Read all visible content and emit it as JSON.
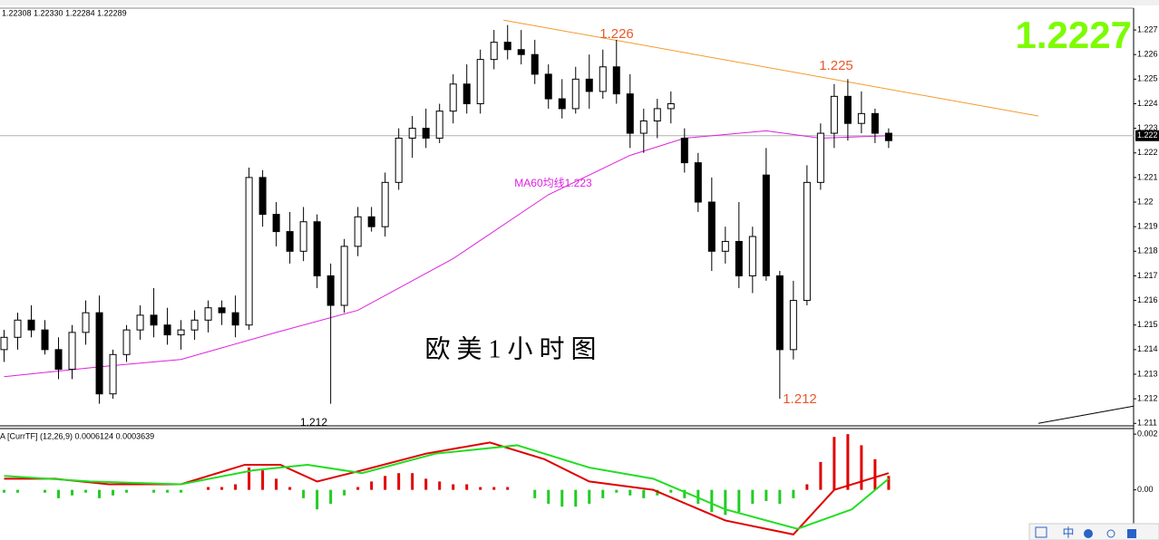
{
  "chart_data": {
    "type": "candlestick",
    "header": "1.22308 1.22330 1.22284 1.22289",
    "title": "欧 美 1 小 时 图",
    "last_price": 1.2227,
    "price_box": "1.222",
    "xlim": [
      -0.3,
      83
    ],
    "ylim": [
      1.2109,
      1.22785
    ],
    "yticks": [
      1.227,
      1.226,
      1.225,
      1.224,
      1.223,
      1.222,
      1.221,
      1.22,
      1.219,
      1.218,
      1.217,
      1.216,
      1.215,
      1.214,
      1.213,
      1.212,
      1.211
    ],
    "up_color": "#ffffff",
    "down_color": "#000000",
    "open": [
      1.214,
      1.2145,
      1.2152,
      1.2148,
      1.214,
      1.2132,
      1.2147,
      1.2155,
      1.2122,
      1.2138,
      1.2148,
      1.2154,
      1.215,
      1.2146,
      1.2148,
      1.2152,
      1.2157,
      1.2155,
      1.215,
      1.221,
      1.2195,
      1.2188,
      1.218,
      1.2192,
      1.217,
      1.2158,
      1.2182,
      1.2194,
      1.219,
      1.2208,
      1.2226,
      1.223,
      1.2226,
      1.2237,
      1.2248,
      1.224,
      1.2258,
      1.2265,
      1.2262,
      1.226,
      1.2252,
      1.2242,
      1.2238,
      1.225,
      1.2245,
      1.2255,
      1.2244,
      1.2228,
      1.2233,
      1.2238,
      1.2226,
      1.2216,
      1.22,
      1.218,
      1.2184,
      1.217,
      1.2211,
      1.217,
      1.214,
      1.216,
      1.2208,
      1.2228,
      1.2243,
      1.2232,
      1.2236,
      1.2228
    ],
    "high": [
      1.2148,
      1.2155,
      1.2158,
      1.2152,
      1.2145,
      1.215,
      1.216,
      1.2162,
      1.214,
      1.215,
      1.2158,
      1.2165,
      1.2157,
      1.2152,
      1.2156,
      1.216,
      1.216,
      1.2162,
      1.2214,
      1.2213,
      1.22,
      1.2196,
      1.2198,
      1.2195,
      1.2175,
      1.2185,
      1.2198,
      1.2198,
      1.2212,
      1.223,
      1.2235,
      1.2238,
      1.224,
      1.2252,
      1.2256,
      1.2262,
      1.227,
      1.2272,
      1.227,
      1.2266,
      1.2256,
      1.225,
      1.2255,
      1.226,
      1.2262,
      1.2266,
      1.2252,
      1.2238,
      1.2242,
      1.2245,
      1.223,
      1.222,
      1.221,
      1.219,
      1.22,
      1.219,
      1.2222,
      1.2172,
      1.2168,
      1.2215,
      1.2232,
      1.2248,
      1.225,
      1.2245,
      1.2238,
      1.223
    ],
    "low": [
      1.2135,
      1.214,
      1.2145,
      1.2138,
      1.2128,
      1.2128,
      1.2142,
      1.2118,
      1.212,
      1.2135,
      1.2144,
      1.2145,
      1.2142,
      1.214,
      1.2144,
      1.2147,
      1.215,
      1.2145,
      1.2148,
      1.219,
      1.2182,
      1.2175,
      1.2176,
      1.2165,
      1.2118,
      1.2155,
      1.2178,
      1.2188,
      1.2186,
      1.2205,
      1.2218,
      1.2222,
      1.2224,
      1.2232,
      1.2236,
      1.2236,
      1.2254,
      1.2258,
      1.2256,
      1.2248,
      1.2238,
      1.2234,
      1.2236,
      1.2238,
      1.2242,
      1.224,
      1.2222,
      1.222,
      1.2226,
      1.2232,
      1.2212,
      1.2196,
      1.2172,
      1.2175,
      1.2165,
      1.2163,
      1.2168,
      1.212,
      1.2136,
      1.2158,
      1.2205,
      1.2222,
      1.2225,
      1.2228,
      1.2224,
      1.2222
    ],
    "close": [
      1.2145,
      1.2152,
      1.2148,
      1.214,
      1.2132,
      1.2147,
      1.2155,
      1.2122,
      1.2138,
      1.2148,
      1.2154,
      1.215,
      1.2146,
      1.2148,
      1.2152,
      1.2157,
      1.2155,
      1.215,
      1.221,
      1.2195,
      1.2188,
      1.218,
      1.2192,
      1.217,
      1.2158,
      1.2182,
      1.2194,
      1.219,
      1.2208,
      1.2226,
      1.223,
      1.2226,
      1.2237,
      1.2248,
      1.224,
      1.2258,
      1.2265,
      1.2262,
      1.226,
      1.2252,
      1.2242,
      1.2238,
      1.225,
      1.2245,
      1.2255,
      1.2244,
      1.2228,
      1.2233,
      1.2238,
      1.224,
      1.2216,
      1.22,
      1.218,
      1.2184,
      1.217,
      1.2186,
      1.217,
      1.214,
      1.216,
      1.2208,
      1.2228,
      1.2243,
      1.2232,
      1.2236,
      1.2228,
      1.2225
    ],
    "ma60": {
      "name": "MA60均线1.223",
      "color": "#dd22dd",
      "x": [
        0,
        7,
        13,
        20,
        26,
        33,
        40,
        46,
        50,
        56,
        60,
        65
      ],
      "values": [
        1.2129,
        1.2133,
        1.2136,
        1.2147,
        1.2156,
        1.2177,
        1.2203,
        1.2219,
        1.2226,
        1.2229,
        1.2226,
        1.2227
      ]
    },
    "trendlines": [
      {
        "color": "#f39a2a",
        "x": [
          36.7,
          76
        ],
        "values": [
          1.2274,
          1.2235
        ]
      },
      {
        "color": "#000000",
        "x": [
          76,
          83
        ],
        "values": [
          1.211,
          1.2117
        ]
      }
    ],
    "annotations": [
      "1.226",
      "1.225",
      "1.212",
      "1.212"
    ],
    "annotation_color": "#e8582a",
    "macd": {
      "label": "A [CurrTF] (12,26,9) 0.0006124 0.0003639",
      "ylim": [
        -0.0018,
        0.0022
      ],
      "yticks": [
        {
          "value": 0.002,
          "label": "0.002"
        },
        {
          "value": 0,
          "label": "0.00"
        }
      ],
      "up_color": "#e00000",
      "down_color": "#22cc22",
      "histogram": [
        -0.0001,
        -0.0001,
        0,
        -0.0001,
        -0.0003,
        -0.0002,
        -0.0001,
        -0.0003,
        -0.0002,
        -0.0001,
        0,
        -0.0001,
        -0.0001,
        -0.0001,
        0,
        0.0001,
        0.0001,
        0.0002,
        0.0008,
        0.0007,
        0.0004,
        0.0001,
        -0.0003,
        -0.0007,
        -0.0005,
        -0.0002,
        0.0001,
        0.0003,
        0.0005,
        0.0006,
        0.0006,
        0.0004,
        0.0003,
        0.0002,
        0.0002,
        0.0001,
        0.0001,
        0.0001,
        0,
        -0.0003,
        -0.0005,
        -0.0006,
        -0.0006,
        -0.0005,
        -0.0003,
        -0.0001,
        -0.0002,
        -0.0003,
        -0.0002,
        -0.0001,
        -0.0003,
        -0.0005,
        -0.0008,
        -0.0009,
        -0.0008,
        -0.0005,
        -0.0004,
        -0.0005,
        -0.0003,
        0.0002,
        0.001,
        0.0019,
        0.002,
        0.0016,
        0.0011,
        0.0005
      ],
      "series": [
        {
          "color": "#e00000",
          "x": [
            0,
            3.7,
            7.7,
            13,
            17.7,
            20.3,
            23,
            26.3,
            31,
            35.7,
            39.7,
            43,
            47.7,
            53,
            58,
            61,
            65
          ],
          "values": [
            0.0004,
            0.0004,
            0.0002,
            0.0002,
            0.0009,
            0.0009,
            0.0003,
            0.0007,
            0.0013,
            0.0017,
            0.0011,
            0.0003,
            0,
            -0.0011,
            -0.0016,
            0,
            0.0006
          ]
        },
        {
          "color": "#22dd22",
          "x": [
            0,
            6.3,
            13,
            18.3,
            22.3,
            26.3,
            31.7,
            37.7,
            43,
            47.7,
            53,
            58.3,
            62.3,
            65
          ],
          "values": [
            0.0005,
            0.0003,
            0.0002,
            0.0007,
            0.0009,
            0.0006,
            0.0013,
            0.0016,
            0.0008,
            0.0004,
            -0.0007,
            -0.0014,
            -0.0007,
            0.0004
          ]
        }
      ]
    },
    "toolbar": "中"
  }
}
